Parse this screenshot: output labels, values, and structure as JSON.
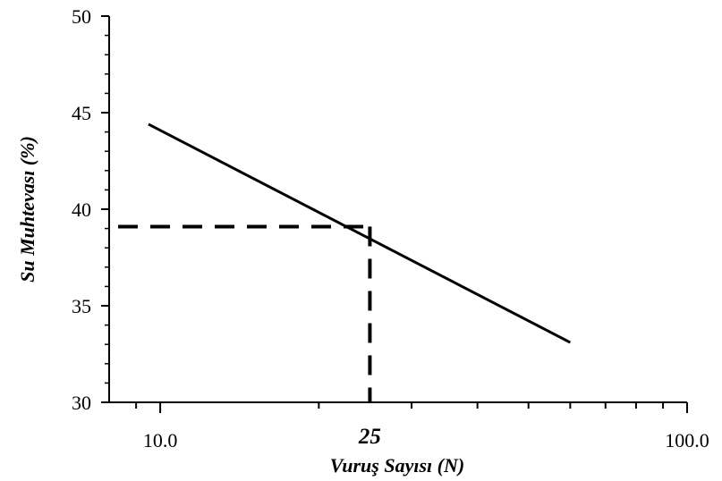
{
  "chart_data": {
    "type": "line",
    "title": "",
    "xlabel": "Vuruş Sayısı (N)",
    "ylabel": "Su Muhtevası (%)",
    "x_scale": "log",
    "xlim": [
      8.0,
      100.0
    ],
    "ylim": [
      30,
      50
    ],
    "x_tick_labels": [
      "10.0",
      "100.0"
    ],
    "y_ticks": [
      30,
      35,
      40,
      45,
      50
    ],
    "grid": false,
    "series": [
      {
        "x": [
          9.5,
          60.0
        ],
        "y": [
          44.4,
          33.1
        ]
      }
    ],
    "annotation": {
      "x": 25,
      "y": 39.1,
      "label": "25",
      "style": "dashed"
    }
  }
}
